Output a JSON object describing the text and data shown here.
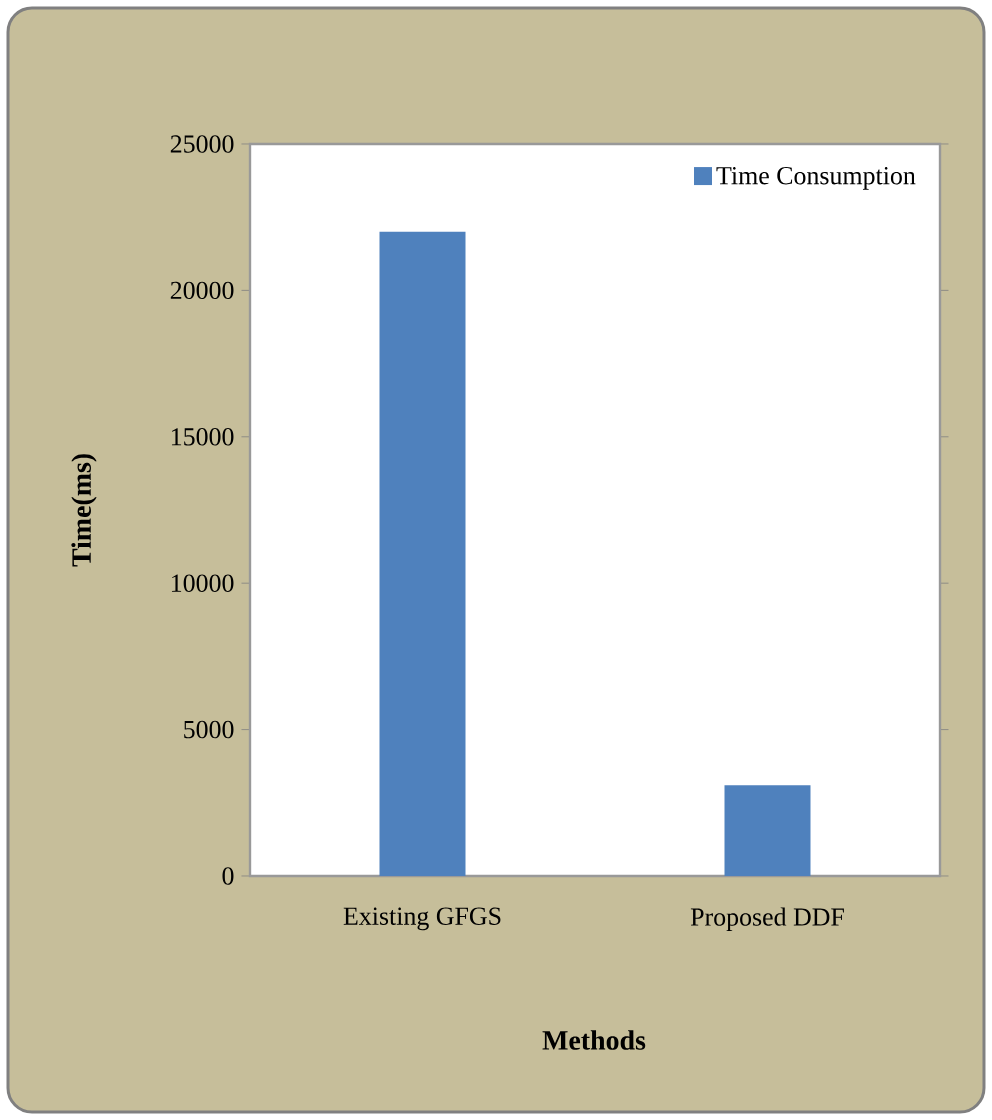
{
  "chart_data": {
    "type": "bar",
    "xlabel": "Methods",
    "ylabel": "Time(ms)",
    "categories": [
      "Existing GFGS",
      "Proposed DDF"
    ],
    "series": [
      {
        "name": "Time Consumption",
        "color": "#4f81bd",
        "values": [
          22000,
          3100
        ]
      }
    ],
    "ylim": [
      0,
      25000
    ],
    "yticks": [
      0,
      5000,
      10000,
      15000,
      20000,
      25000
    ],
    "legend": "top right"
  }
}
